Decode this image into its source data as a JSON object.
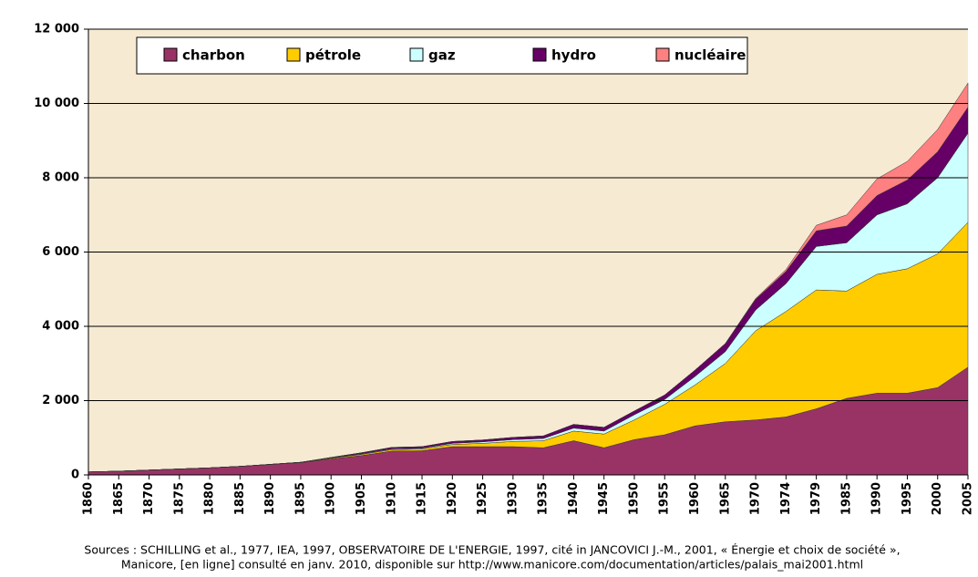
{
  "chart_data": {
    "type": "stacked_area",
    "categories": [
      "1860",
      "1865",
      "1870",
      "1875",
      "1880",
      "1885",
      "1890",
      "1895",
      "1900",
      "1905",
      "1910",
      "1915",
      "1920",
      "1925",
      "1930",
      "1935",
      "1940",
      "1945",
      "1950",
      "1955",
      "1960",
      "1965",
      "1970",
      "1974",
      "1979",
      "1985",
      "1990",
      "1995",
      "2000",
      "2005"
    ],
    "series": [
      {
        "name": "charbon",
        "color": "#993366",
        "values": [
          80,
          100,
          130,
          160,
          190,
          230,
          280,
          330,
          430,
          520,
          640,
          650,
          760,
          760,
          760,
          730,
          920,
          730,
          950,
          1080,
          1320,
          1430,
          1480,
          1560,
          1780,
          2060,
          2200,
          2200,
          2350,
          2900
        ]
      },
      {
        "name": "pétrole",
        "color": "#ffcc00",
        "values": [
          0,
          0,
          0,
          0,
          0,
          0,
          5,
          10,
          20,
          30,
          40,
          50,
          60,
          90,
          140,
          190,
          260,
          370,
          530,
          820,
          1100,
          1570,
          2400,
          2840,
          3200,
          2890,
          3200,
          3350,
          3600,
          3900
        ]
      },
      {
        "name": "gaz",
        "color": "#ccffff",
        "values": [
          0,
          0,
          0,
          0,
          0,
          0,
          0,
          0,
          10,
          15,
          20,
          20,
          30,
          40,
          50,
          60,
          80,
          80,
          140,
          130,
          230,
          320,
          560,
          750,
          1170,
          1300,
          1600,
          1750,
          2050,
          2400
        ]
      },
      {
        "name": "hydro",
        "color": "#660066",
        "values": [
          0,
          0,
          0,
          0,
          0,
          0,
          0,
          0,
          10,
          30,
          40,
          40,
          50,
          50,
          60,
          70,
          100,
          100,
          100,
          120,
          170,
          210,
          290,
          330,
          420,
          450,
          520,
          640,
          700,
          700
        ]
      },
      {
        "name": "nucléaire",
        "color": "#ff8080",
        "values": [
          0,
          0,
          0,
          0,
          0,
          0,
          0,
          0,
          0,
          0,
          0,
          0,
          0,
          0,
          0,
          0,
          0,
          0,
          0,
          0,
          0,
          10,
          20,
          50,
          150,
          300,
          450,
          500,
          600,
          650
        ]
      }
    ],
    "ylim": [
      0,
      12000
    ],
    "yticks": [
      0,
      {
        "value": 2000,
        "label": "2 000"
      },
      {
        "value": 4000,
        "label": "4 000"
      },
      {
        "value": 6000,
        "label": "6 000"
      },
      {
        "value": 8000,
        "label": "8 000"
      },
      {
        "value": 10000,
        "label": "10 000"
      },
      {
        "value": 12000,
        "label": "12 000"
      }
    ],
    "grid": true,
    "source": [
      "Sources : SCHILLING et al., 1977, IEA, 1997, OBSERVATOIRE DE L'ENERGIE, 1997, cité in JANCOVICI J.-M., 2001, « Énergie et  choix de société »,",
      "Manicore, [en ligne] consulté en janv. 2010, disponible sur http://www.manicore.com/documentation/articles/palais_mai2001.html"
    ]
  }
}
